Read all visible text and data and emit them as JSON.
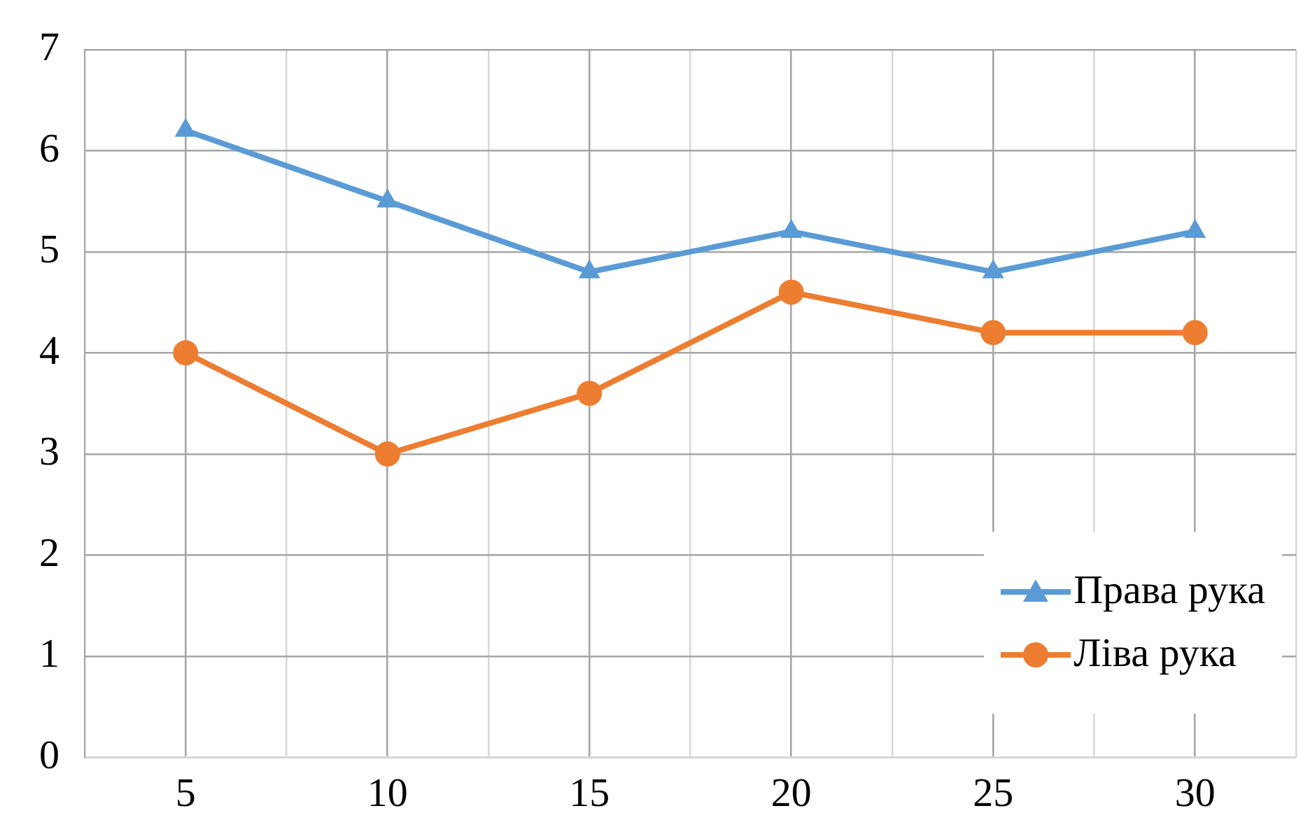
{
  "chart_data": {
    "type": "line",
    "x": [
      5,
      10,
      15,
      20,
      25,
      30
    ],
    "series": [
      {
        "name": "Права рука",
        "color": "#5b9bd5",
        "marker": "triangle",
        "values": [
          6.2,
          5.5,
          4.8,
          5.2,
          4.8,
          5.2
        ]
      },
      {
        "name": "Ліва рука",
        "color": "#ed7d31",
        "marker": "circle",
        "values": [
          4,
          3,
          3.6,
          4.6,
          4.2,
          4.2
        ]
      }
    ],
    "xlim": [
      2.5,
      32.5
    ],
    "xticks": [
      {
        "value": 2.5,
        "label": null
      },
      5,
      {
        "value": 7.5,
        "label": null
      },
      10,
      {
        "value": 12.5,
        "label": null
      },
      15,
      {
        "value": 17.5,
        "label": null
      },
      20,
      {
        "value": 22.5,
        "label": null
      },
      25,
      {
        "value": 27.5,
        "label": null
      },
      30,
      {
        "value": 32.5,
        "label": null
      }
    ],
    "ylim": [
      0,
      7
    ],
    "yticks": [
      0,
      1,
      2,
      3,
      4,
      5,
      6,
      7
    ],
    "grid": true,
    "legend": "bottom right",
    "line_style": "solid"
  }
}
